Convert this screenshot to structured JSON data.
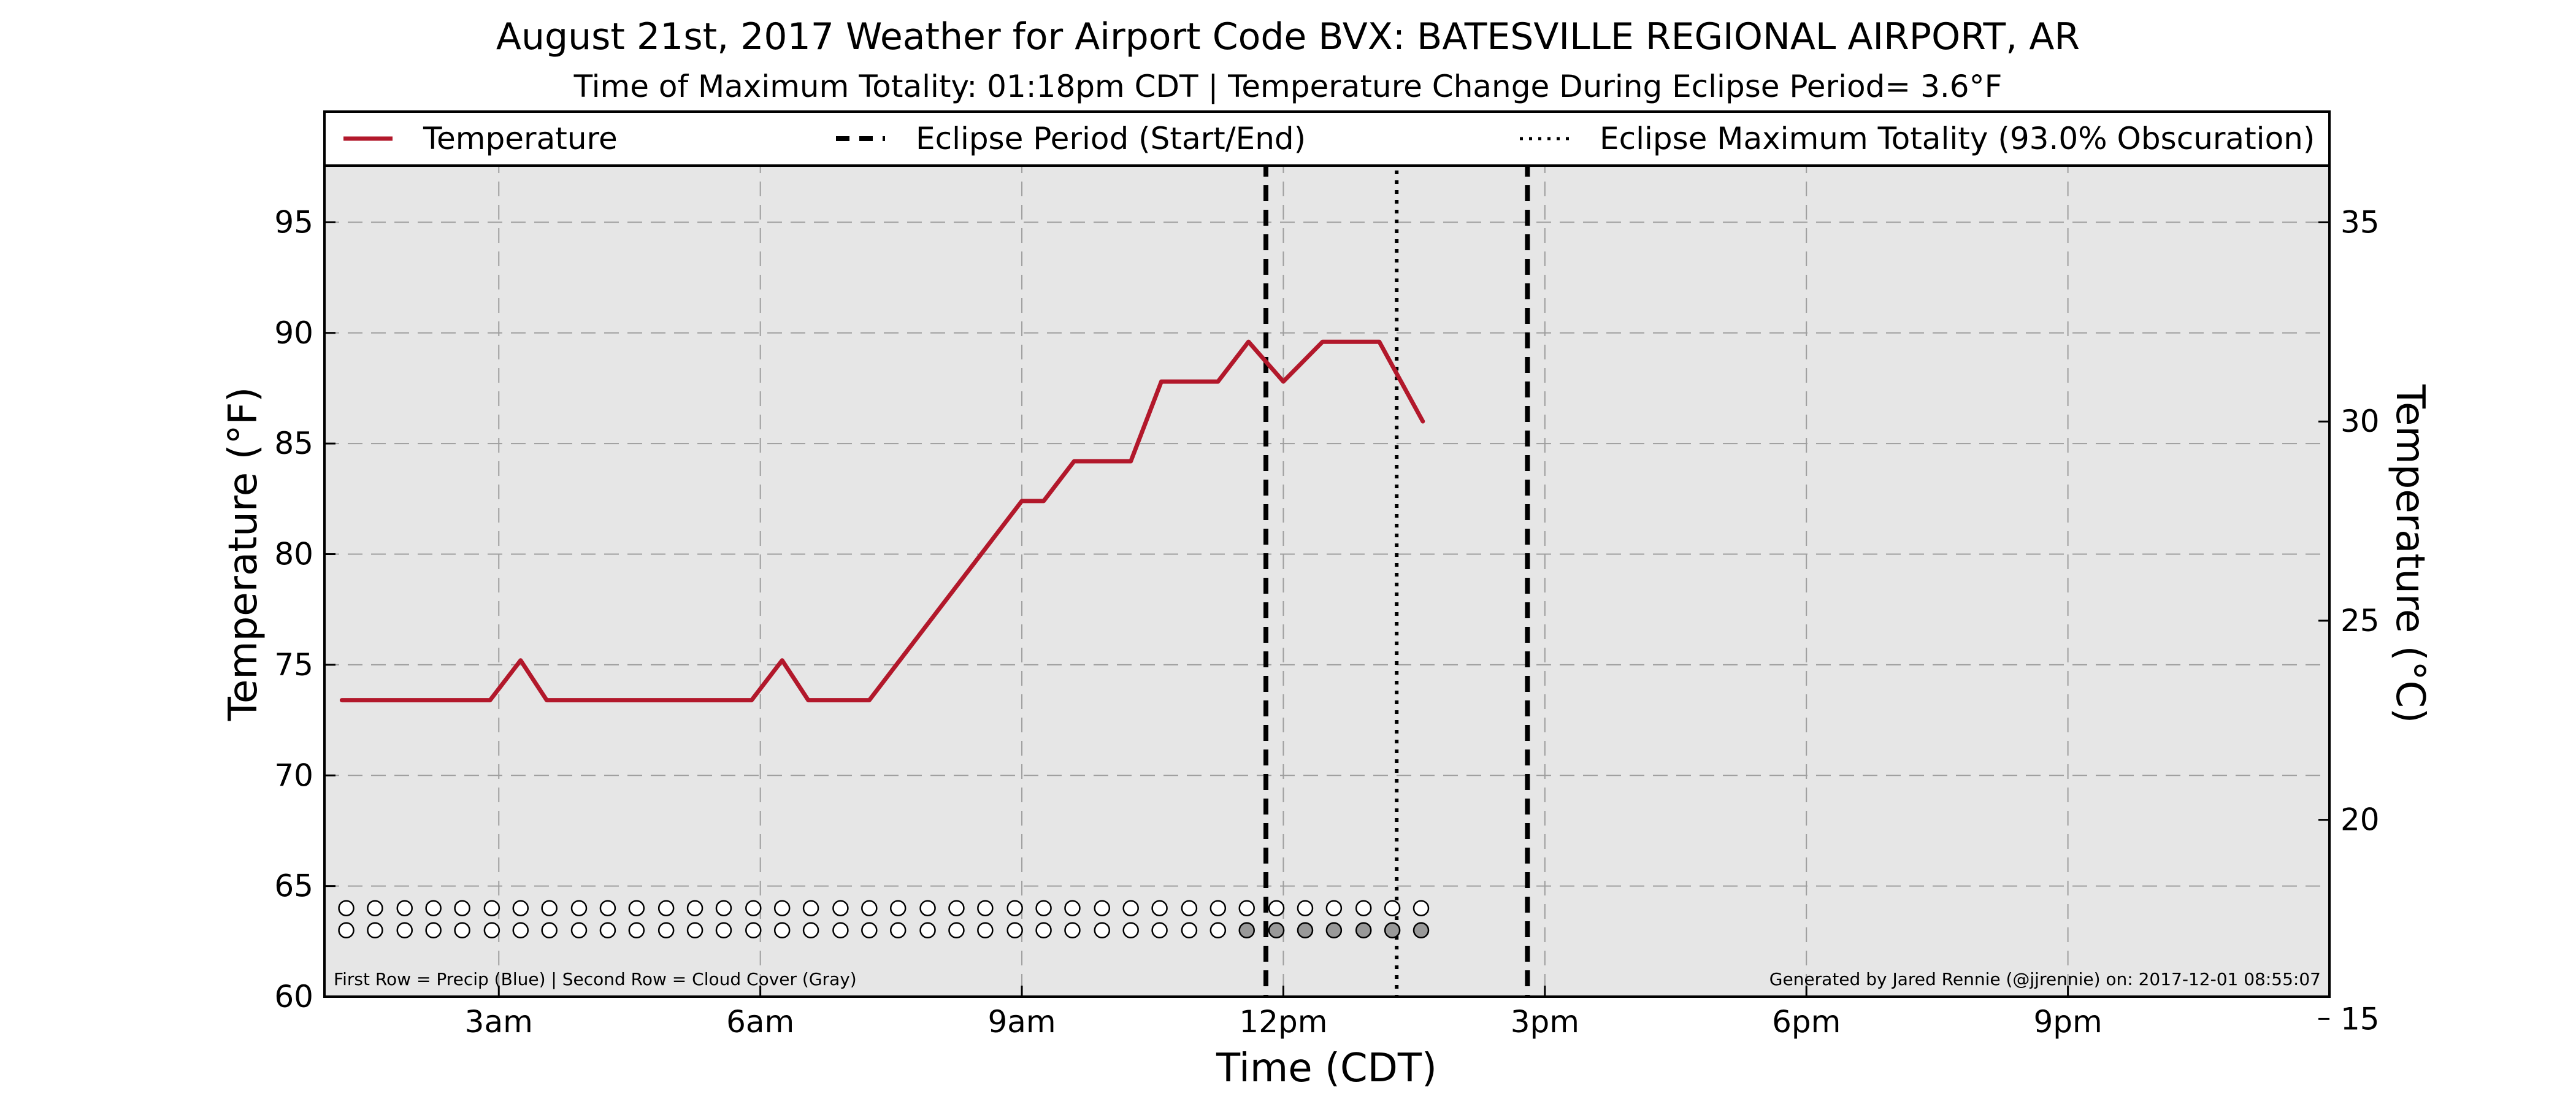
{
  "chart_data": {
    "type": "line",
    "title": "August 21st, 2017 Weather for Airport Code BVX: BATESVILLE REGIONAL AIRPORT, AR",
    "subtitle": "Time of Maximum Totality: 01:18pm CDT | Temperature Change During Eclipse Period= 3.6°F",
    "xlabel": "Time (CDT)",
    "ylabel": "Temperature (°F)",
    "y2label": "Temperature (°C)",
    "xlim": [
      1.0,
      24.0
    ],
    "ylim": [
      60,
      100
    ],
    "y2lim": [
      15.56,
      37.78
    ],
    "grid": true,
    "legend_position": "top",
    "x_ticks": [
      {
        "value": 3,
        "label": "3am"
      },
      {
        "value": 6,
        "label": "6am"
      },
      {
        "value": 9,
        "label": "9am"
      },
      {
        "value": 12,
        "label": "12pm"
      },
      {
        "value": 15,
        "label": "3pm"
      },
      {
        "value": 18,
        "label": "6pm"
      },
      {
        "value": 21,
        "label": "9pm"
      }
    ],
    "y_ticks": [
      60,
      65,
      70,
      75,
      80,
      85,
      90,
      95
    ],
    "y2_ticks": [
      15,
      20,
      25,
      30,
      35
    ],
    "legend": [
      {
        "label": "Temperature",
        "style": "solid",
        "color": "#b2182b"
      },
      {
        "label": "Eclipse Period (Start/End)",
        "style": "dashed",
        "color": "#000000"
      },
      {
        "label": "Eclipse Maximum Totality (93.0% Obscuration)",
        "style": "dotted",
        "color": "#000000"
      }
    ],
    "series": [
      {
        "name": "Temperature",
        "color": "#b2182b",
        "x": [
          1.2,
          2.0,
          2.9,
          3.25,
          3.55,
          4.0,
          5.0,
          5.9,
          6.25,
          6.55,
          7.0,
          7.25,
          9.0,
          9.25,
          9.6,
          10.25,
          10.6,
          11.25,
          11.6,
          12.0,
          12.45,
          13.1,
          13.6
        ],
        "y": [
          73.4,
          73.4,
          73.4,
          75.2,
          73.4,
          73.4,
          73.4,
          73.4,
          75.2,
          73.4,
          73.4,
          73.4,
          82.4,
          82.4,
          84.2,
          84.2,
          87.8,
          87.8,
          89.6,
          87.8,
          89.6,
          89.6,
          86.0
        ]
      }
    ],
    "eclipse_start": 11.8,
    "eclipse_end": 14.8,
    "eclipse_max": 13.3,
    "obs_rows": {
      "times": [
        1.25,
        1.58,
        1.92,
        2.25,
        2.58,
        2.92,
        3.25,
        3.58,
        3.92,
        4.25,
        4.58,
        4.92,
        5.25,
        5.58,
        5.92,
        6.25,
        6.58,
        6.92,
        7.25,
        7.58,
        7.92,
        8.25,
        8.58,
        8.92,
        9.25,
        9.58,
        9.92,
        10.25,
        10.58,
        10.92,
        11.25,
        11.58,
        11.92,
        12.25,
        12.58,
        12.92,
        13.25,
        13.58
      ],
      "precip_y": 64,
      "cloud_y": 63,
      "precip_fill": [
        "#ffffff",
        "#ffffff",
        "#ffffff",
        "#ffffff",
        "#ffffff",
        "#ffffff",
        "#ffffff",
        "#ffffff",
        "#ffffff",
        "#ffffff",
        "#ffffff",
        "#ffffff",
        "#ffffff",
        "#ffffff",
        "#ffffff",
        "#ffffff",
        "#ffffff",
        "#ffffff",
        "#ffffff",
        "#ffffff",
        "#ffffff",
        "#ffffff",
        "#ffffff",
        "#ffffff",
        "#ffffff",
        "#ffffff",
        "#ffffff",
        "#ffffff",
        "#ffffff",
        "#ffffff",
        "#ffffff",
        "#ffffff",
        "#ffffff",
        "#ffffff",
        "#ffffff",
        "#ffffff",
        "#ffffff",
        "#ffffff"
      ],
      "cloud_fill": [
        "#ffffff",
        "#ffffff",
        "#ffffff",
        "#ffffff",
        "#ffffff",
        "#ffffff",
        "#ffffff",
        "#ffffff",
        "#ffffff",
        "#ffffff",
        "#ffffff",
        "#ffffff",
        "#ffffff",
        "#ffffff",
        "#ffffff",
        "#ffffff",
        "#ffffff",
        "#ffffff",
        "#ffffff",
        "#ffffff",
        "#ffffff",
        "#ffffff",
        "#ffffff",
        "#ffffff",
        "#ffffff",
        "#ffffff",
        "#ffffff",
        "#ffffff",
        "#ffffff",
        "#ffffff",
        "#ffffff",
        "#999999",
        "#999999",
        "#999999",
        "#999999",
        "#999999",
        "#999999",
        "#999999"
      ]
    },
    "footnote_left": "First Row = Precip (Blue) | Second Row = Cloud Cover (Gray)",
    "footnote_right": "Generated by Jared Rennie (@jjrennie) on: 2017-12-01 08:55:07"
  }
}
